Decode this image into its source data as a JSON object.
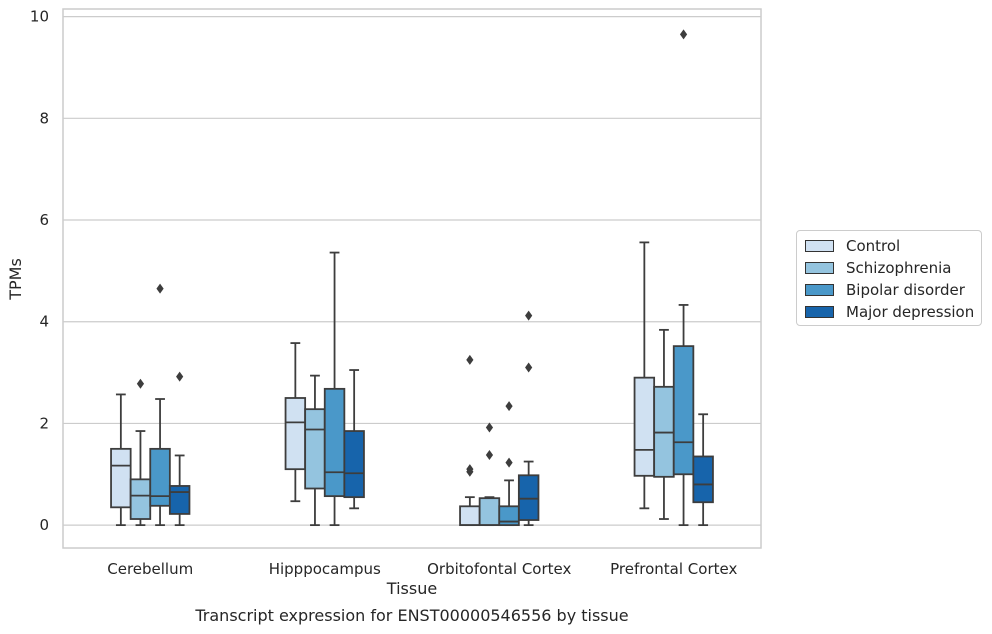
{
  "caption": "Transcript expression for ENST00000546556 by tissue",
  "chart_data": {
    "type": "box",
    "xlabel": "Tissue",
    "ylabel": "TPMs",
    "ylim": [
      -0.45,
      10.15
    ],
    "yticks": [
      0,
      2,
      4,
      6,
      8,
      10
    ],
    "grid": true,
    "legend_position": "right",
    "categories": [
      "Cerebellum",
      "Hipppocampus",
      "Orbitofontal Cortex",
      "Prefrontal Cortex"
    ],
    "series": [
      {
        "name": "Control",
        "color": "#d0e1f2",
        "boxes": [
          {
            "whisker_low": 0.0,
            "q1": 0.35,
            "median": 1.17,
            "q3": 1.5,
            "whisker_high": 2.57,
            "outliers": []
          },
          {
            "whisker_low": 0.47,
            "q1": 1.1,
            "median": 2.02,
            "q3": 2.5,
            "whisker_high": 3.58,
            "outliers": []
          },
          {
            "whisker_low": 0.0,
            "q1": 0.0,
            "median": 0.0,
            "q3": 0.37,
            "whisker_high": 0.55,
            "outliers": [
              1.05,
              1.1,
              3.25
            ]
          },
          {
            "whisker_low": 0.33,
            "q1": 0.97,
            "median": 1.48,
            "q3": 2.9,
            "whisker_high": 5.56,
            "outliers": []
          }
        ]
      },
      {
        "name": "Schizophrenia",
        "color": "#94c4df",
        "boxes": [
          {
            "whisker_low": 0.0,
            "q1": 0.12,
            "median": 0.58,
            "q3": 0.9,
            "whisker_high": 1.85,
            "outliers": [
              2.78
            ]
          },
          {
            "whisker_low": 0.0,
            "q1": 0.72,
            "median": 1.88,
            "q3": 2.28,
            "whisker_high": 2.94,
            "outliers": []
          },
          {
            "whisker_low": 0.0,
            "q1": 0.0,
            "median": 0.0,
            "q3": 0.53,
            "whisker_high": 0.55,
            "outliers": [
              1.38,
              1.92
            ]
          },
          {
            "whisker_low": 0.12,
            "q1": 0.95,
            "median": 1.82,
            "q3": 2.72,
            "whisker_high": 3.84,
            "outliers": []
          }
        ]
      },
      {
        "name": "Bipolar disorder",
        "color": "#4a98c9",
        "boxes": [
          {
            "whisker_low": 0.0,
            "q1": 0.38,
            "median": 0.57,
            "q3": 1.5,
            "whisker_high": 2.48,
            "outliers": [
              4.65
            ]
          },
          {
            "whisker_low": 0.0,
            "q1": 0.57,
            "median": 1.04,
            "q3": 2.68,
            "whisker_high": 5.36,
            "outliers": []
          },
          {
            "whisker_low": 0.0,
            "q1": 0.0,
            "median": 0.07,
            "q3": 0.37,
            "whisker_high": 0.88,
            "outliers": [
              1.23,
              2.34
            ]
          },
          {
            "whisker_low": 0.0,
            "q1": 1.0,
            "median": 1.63,
            "q3": 3.52,
            "whisker_high": 4.33,
            "outliers": [
              9.65
            ]
          }
        ]
      },
      {
        "name": "Major depression",
        "color": "#1764ab",
        "boxes": [
          {
            "whisker_low": 0.0,
            "q1": 0.22,
            "median": 0.65,
            "q3": 0.77,
            "whisker_high": 1.37,
            "outliers": [
              2.92
            ]
          },
          {
            "whisker_low": 0.33,
            "q1": 0.55,
            "median": 1.02,
            "q3": 1.85,
            "whisker_high": 3.05,
            "outliers": []
          },
          {
            "whisker_low": 0.0,
            "q1": 0.1,
            "median": 0.52,
            "q3": 0.98,
            "whisker_high": 1.25,
            "outliers": [
              3.1,
              4.12
            ]
          },
          {
            "whisker_low": 0.0,
            "q1": 0.45,
            "median": 0.8,
            "q3": 1.35,
            "whisker_high": 2.18,
            "outliers": []
          }
        ]
      }
    ]
  }
}
